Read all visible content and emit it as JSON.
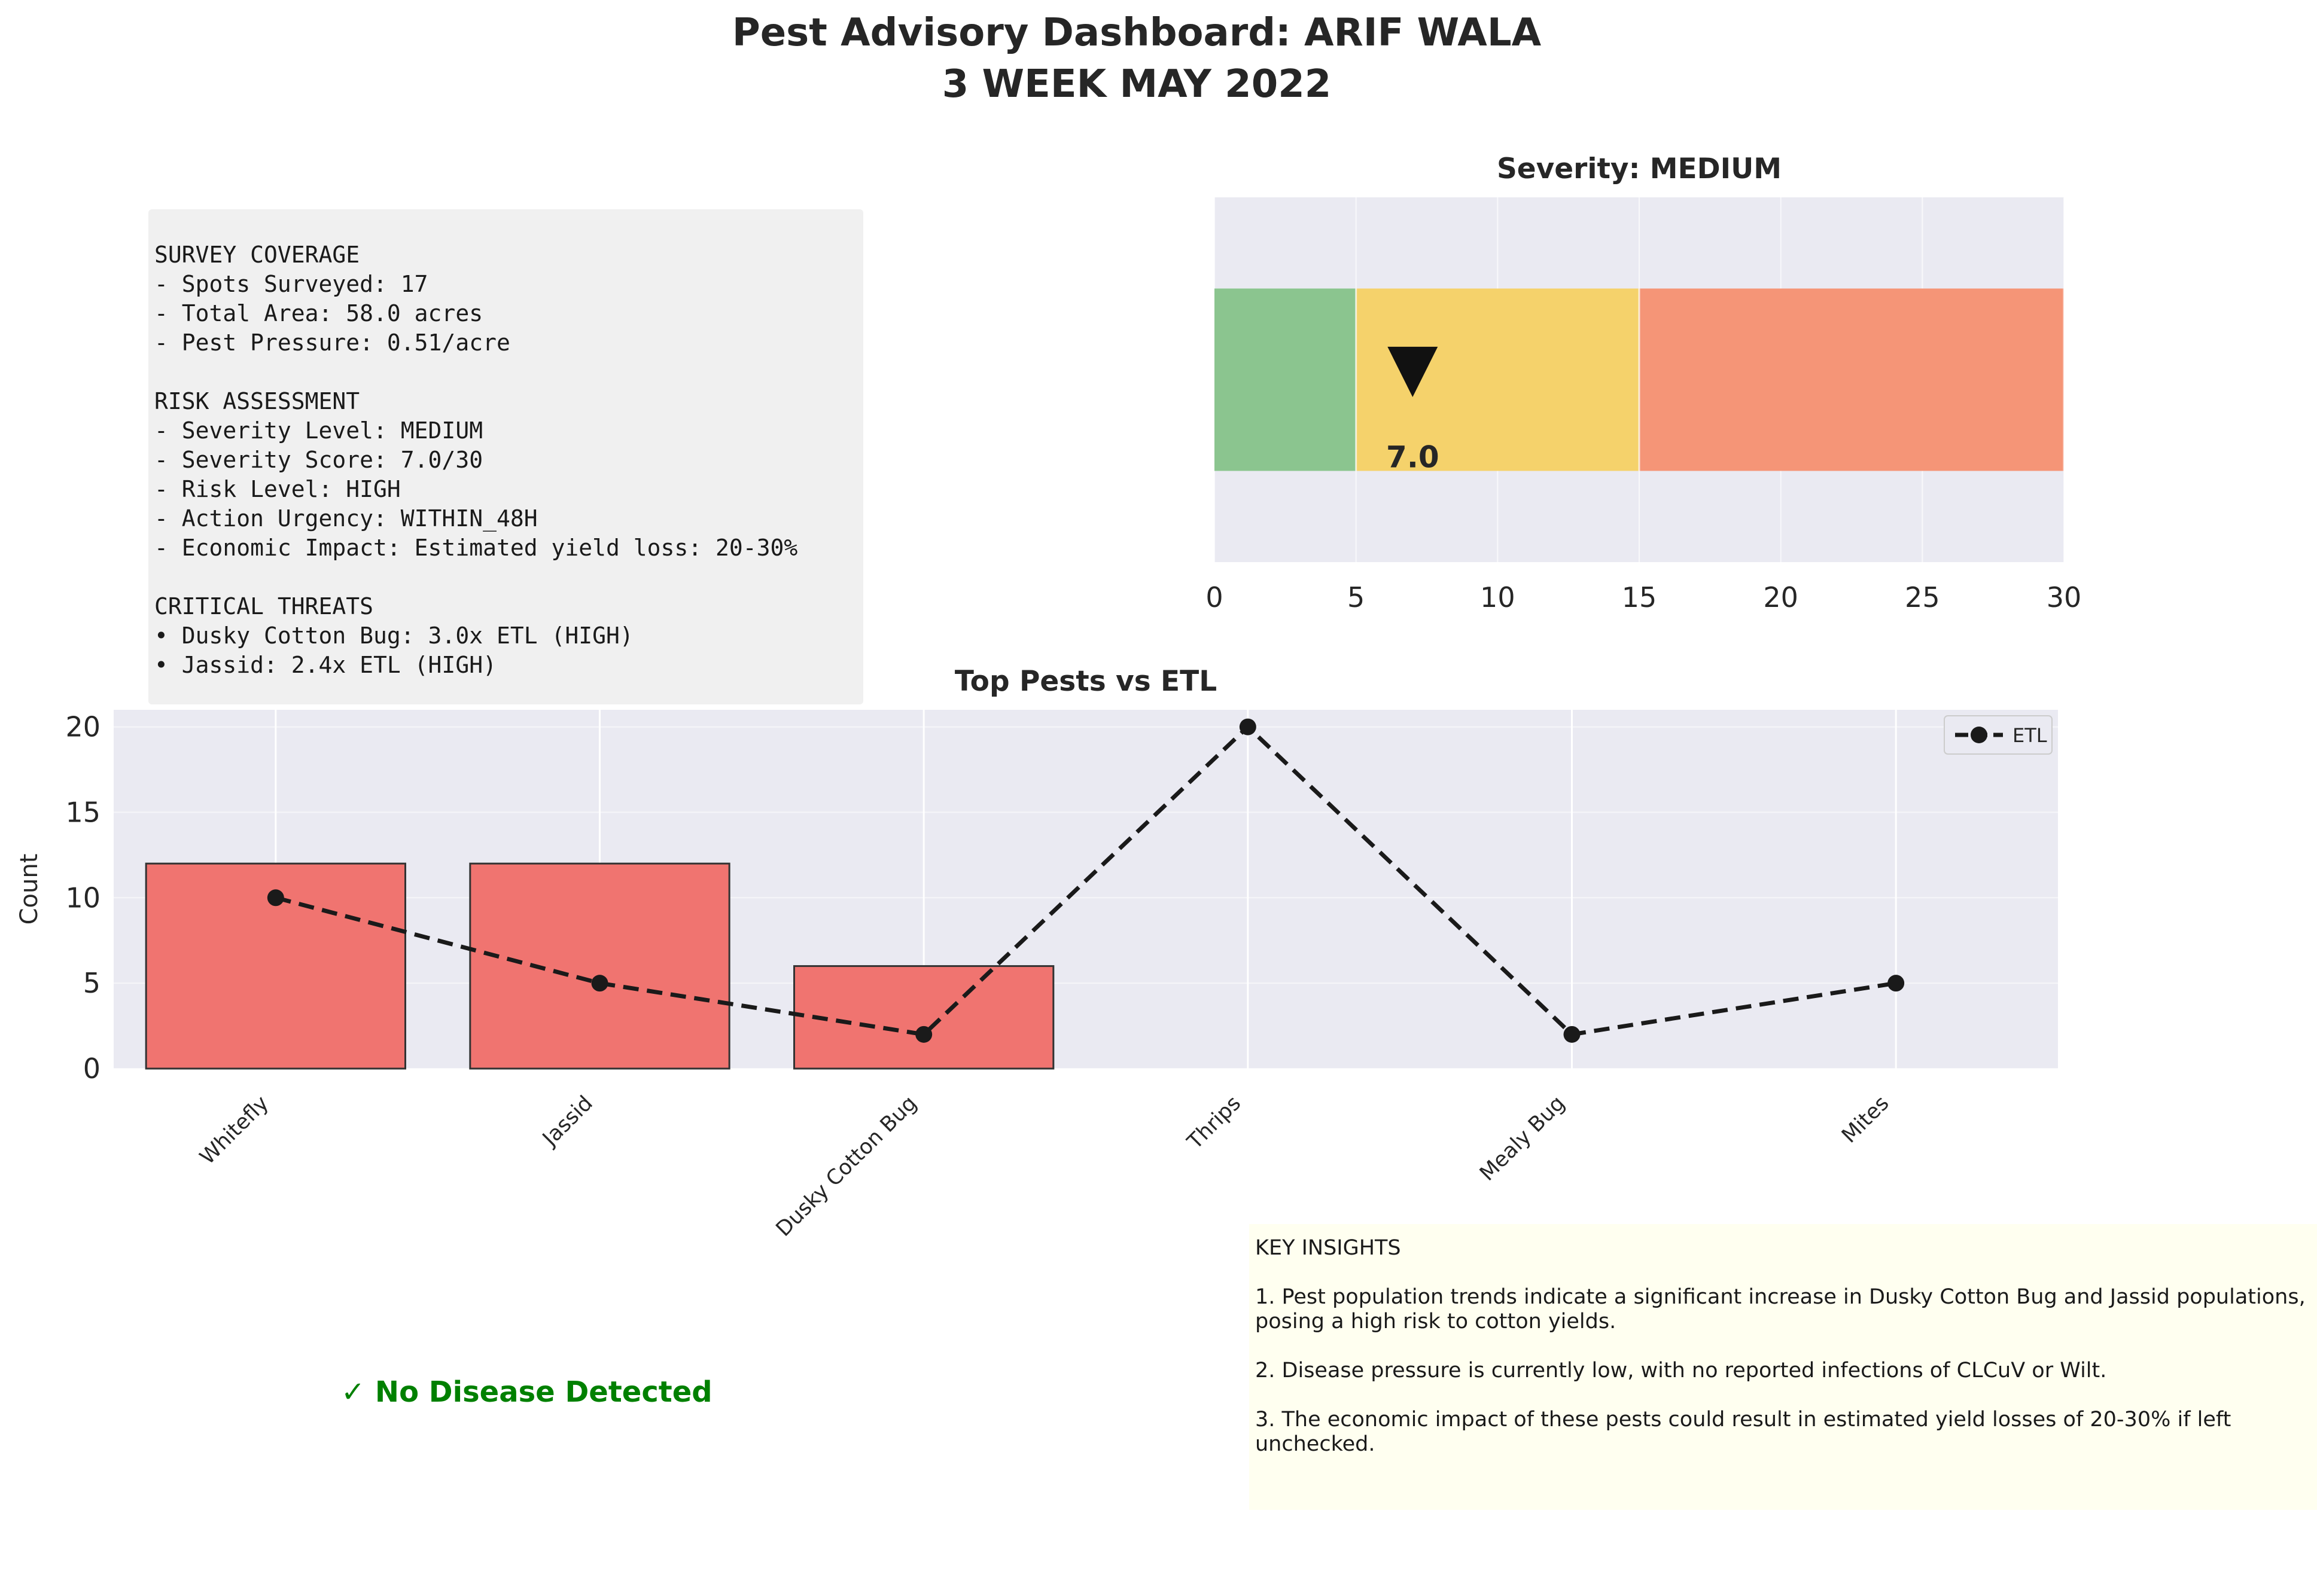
{
  "title": {
    "line1": "Pest Advisory Dashboard: ARIF WALA",
    "line2": "3 WEEK MAY 2022"
  },
  "summary": {
    "lines": [
      "SURVEY COVERAGE",
      "- Spots Surveyed: 17",
      "- Total Area: 58.0 acres",
      "- Pest Pressure: 0.51/acre",
      "",
      "RISK ASSESSMENT",
      "- Severity Level: MEDIUM",
      "- Severity Score: 7.0/30",
      "- Risk Level: HIGH",
      "- Action Urgency: WITHIN_48H",
      "- Economic Impact: Estimated yield loss: 20-30%",
      "",
      "CRITICAL THREATS",
      "• Dusky Cotton Bug: 3.0x ETL (HIGH)",
      "• Jassid: 2.4x ETL (HIGH)"
    ]
  },
  "chart_data": [
    {
      "type": "gauge",
      "title": "Severity: MEDIUM",
      "value": 7.0,
      "value_label": "7.0",
      "marker": "▼",
      "xlim": [
        0,
        30
      ],
      "xticks": [
        0,
        5,
        10,
        15,
        20,
        25,
        30
      ],
      "zones": [
        {
          "from": 0,
          "to": 5,
          "color": "#8bc58f"
        },
        {
          "from": 5,
          "to": 15,
          "color": "#f5d26b"
        },
        {
          "from": 15,
          "to": 30,
          "color": "#f59577"
        }
      ],
      "grid": true
    },
    {
      "type": "bar",
      "title": "Top Pests vs ETL",
      "ylabel": "Count",
      "categories": [
        "Whitefly",
        "Jassid",
        "Dusky Cotton Bug",
        "Thrips",
        "Mealy Bug",
        "Mites"
      ],
      "series": [
        {
          "values": [
            12,
            12,
            6,
            0,
            0,
            0
          ],
          "color": "#f07470"
        },
        {
          "name": "ETL",
          "type": "line",
          "values": [
            10,
            5,
            2,
            20,
            2,
            5
          ],
          "color": "#1a1a1a",
          "style": "dashed"
        }
      ],
      "ylim": [
        0,
        21
      ],
      "yticks": [
        0,
        5,
        10,
        15,
        20
      ],
      "legend": "top-right",
      "grid": true
    }
  ],
  "disease": {
    "status": "✓ No Disease Detected",
    "color": "#008000"
  },
  "insights": {
    "header": "KEY INSIGHTS",
    "items": [
      "1. Pest population trends indicate a significant increase in Dusky Cotton Bug and Jassid populations, posing a high risk to cotton yields.",
      "2. Disease pressure is currently low, with no reported infections of CLCuV or Wilt.",
      "3. The economic impact of these pests could result in estimated yield losses of 20-30% if left unchecked."
    ]
  },
  "colors": {
    "axes_bg": "#eaeaf2",
    "grid": "#ffffff",
    "summary_bg": "#f0f0f0",
    "insights_bg": "#fffff0"
  }
}
